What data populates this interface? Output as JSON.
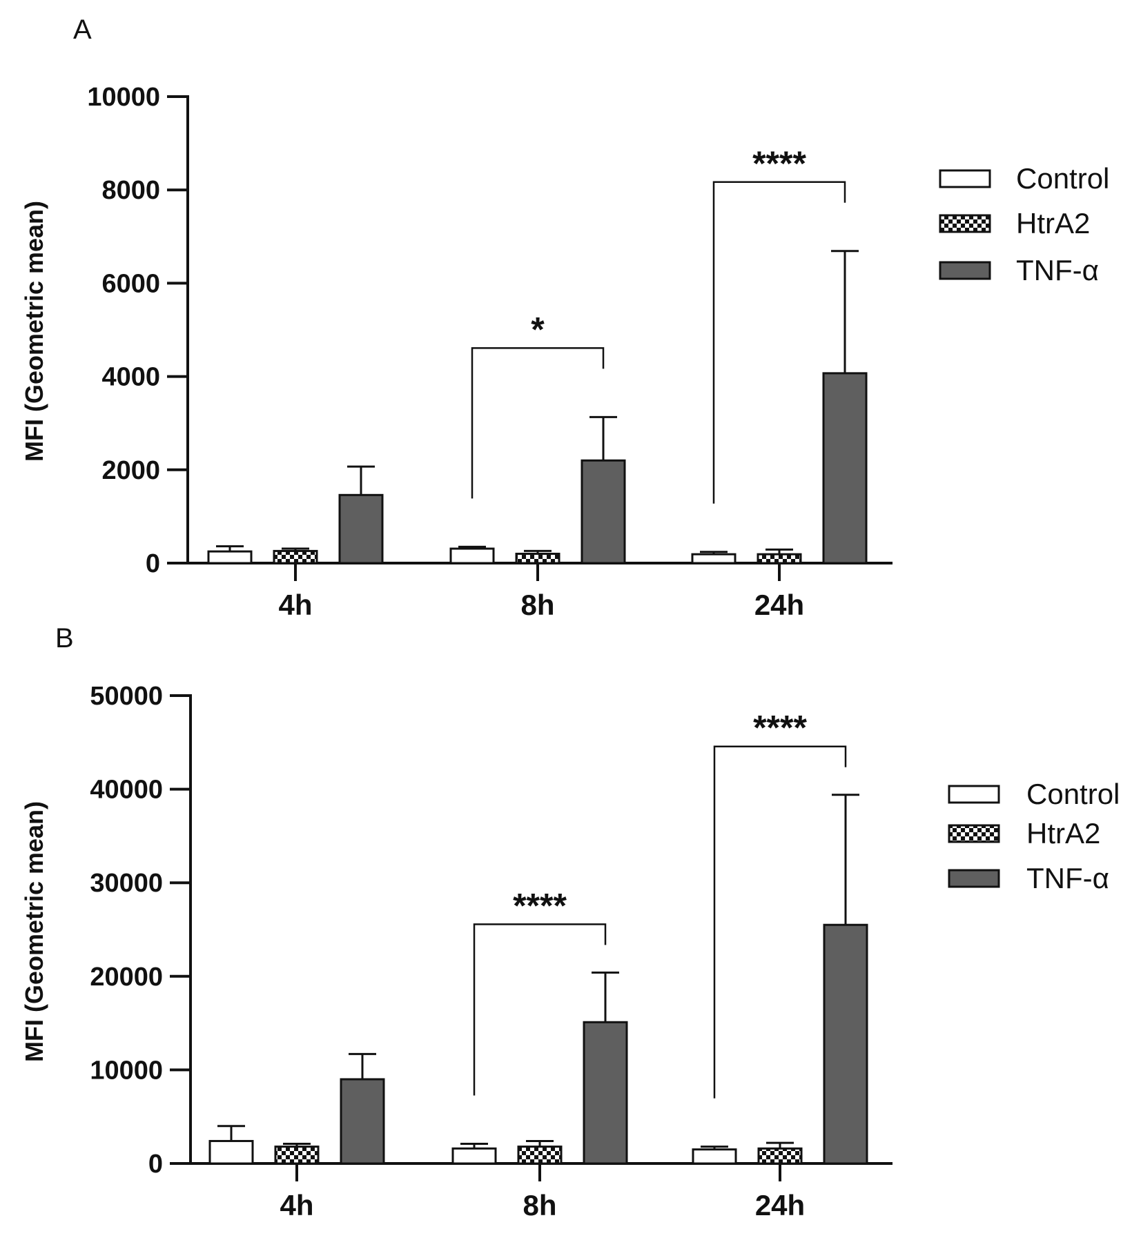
{
  "colors": {
    "control_fill": "#ffffff",
    "htra2_fill": "checkerboard",
    "tnf_fill": "#5f5f5f",
    "line": "#111111"
  },
  "chart_data": [
    {
      "panel": "A",
      "type": "bar",
      "ylabel": "MFI (Geometric mean)",
      "ylim": [
        0,
        10000
      ],
      "yticks": [
        0,
        2000,
        4000,
        6000,
        8000,
        10000
      ],
      "ytick_labels": [
        "0",
        "2000",
        "4000",
        "6000",
        "8000",
        "10000"
      ],
      "categories": [
        "4h",
        "8h",
        "24h"
      ],
      "legend_position": "right",
      "series": [
        {
          "name": "Control",
          "values": [
            250,
            310,
            190
          ],
          "errors": [
            110,
            40,
            50
          ]
        },
        {
          "name": "HtrA2",
          "values": [
            260,
            200,
            190
          ],
          "errors": [
            50,
            60,
            100
          ]
        },
        {
          "name": "TNF-α",
          "values": [
            1460,
            2200,
            4070
          ],
          "errors": [
            610,
            930,
            2620
          ]
        }
      ],
      "significance": [
        {
          "category": "8h",
          "from": "Control",
          "to": "TNF-α",
          "label": "*"
        },
        {
          "category": "24h",
          "from": "Control",
          "to": "TNF-α",
          "label": "****"
        }
      ]
    },
    {
      "panel": "B",
      "type": "bar",
      "ylabel": "MFI (Geometric mean)",
      "ylim": [
        0,
        50000
      ],
      "yticks": [
        0,
        10000,
        20000,
        30000,
        40000,
        50000
      ],
      "ytick_labels": [
        "0",
        "10000",
        "20000",
        "30000",
        "40000",
        "50000"
      ],
      "categories": [
        "4h",
        "8h",
        "24h"
      ],
      "legend_position": "right",
      "series": [
        {
          "name": "Control",
          "values": [
            2400,
            1600,
            1500
          ],
          "errors": [
            1600,
            500,
            300
          ]
        },
        {
          "name": "HtrA2",
          "values": [
            1800,
            1800,
            1600
          ],
          "errors": [
            300,
            600,
            600
          ]
        },
        {
          "name": "TNF-α",
          "values": [
            9000,
            15100,
            25500
          ],
          "errors": [
            2700,
            5300,
            13900
          ]
        }
      ],
      "significance": [
        {
          "category": "8h",
          "from": "Control",
          "to": "TNF-α",
          "label": "****"
        },
        {
          "category": "24h",
          "from": "Control",
          "to": "TNF-α",
          "label": "****"
        }
      ]
    }
  ]
}
